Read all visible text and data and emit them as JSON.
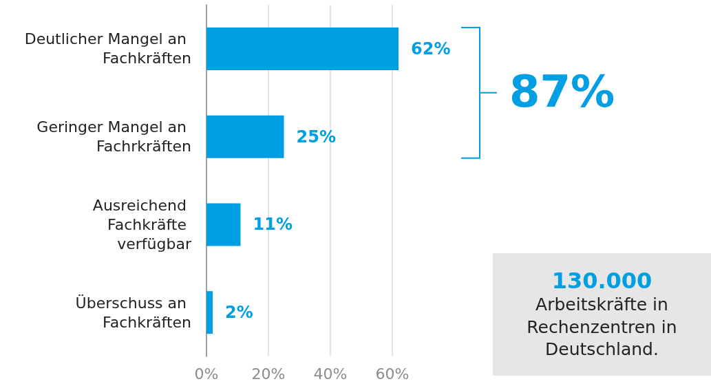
{
  "chart_data": {
    "type": "bar",
    "orientation": "horizontal",
    "categories": [
      "Deutlicher Mangel an Fachkräften",
      "Geringer Mangel an Fachrkräften",
      "Ausreichend Fachkräfte verfügbar",
      "Überschuss an Fachkräften"
    ],
    "values": [
      62,
      25,
      11,
      2
    ],
    "color": "#009fe3",
    "value_labels": [
      "62%",
      "25%",
      "11%",
      "2%"
    ],
    "xlim": [
      0,
      62
    ],
    "xticks": [
      {
        "value": 0,
        "label": "0%"
      },
      {
        "value": 20,
        "label": "20%"
      },
      {
        "value": 40,
        "label": "40%"
      },
      {
        "value": 60,
        "label": "60%"
      }
    ],
    "grid": "x",
    "annotations": [
      "87%",
      "130.000",
      "Arbeitskräfte in Rechenzentren in Deutschland."
    ]
  }
}
